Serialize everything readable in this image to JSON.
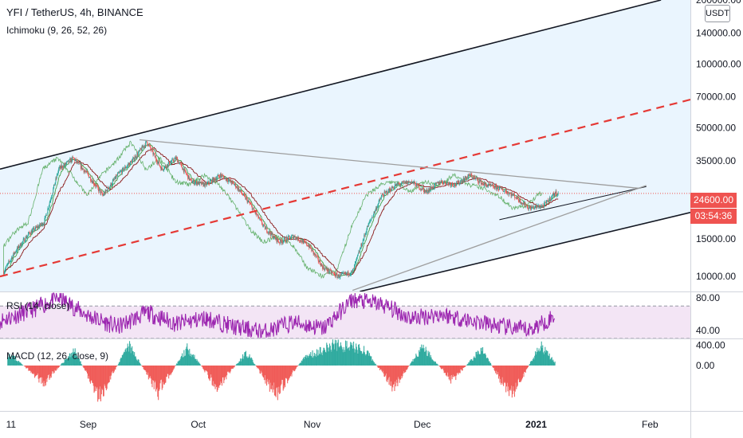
{
  "header": {
    "title": "YFI / TetherUS, 4h, BINANCE",
    "ichimoku_label": "Ichimoku (9, 26, 52, 26)",
    "rsi_label": "RSI (14, close)",
    "macd_label": "MACD (12, 26, close, 9)",
    "unit": "USDT"
  },
  "price_tags": {
    "last_price": "24600.00",
    "countdown": "03:54:36"
  },
  "colors": {
    "bull": "#26a69a",
    "bear": "#ef5350",
    "channel": "#131722",
    "midline": "#e53935",
    "triangle": "#9e9e9e",
    "rsi": "#9c27b0",
    "channel_fill": "#e3f2fd",
    "rsi_fill": "#f3e5f5",
    "tenkan": "#43a047",
    "kijun": "#8b1a1a"
  },
  "chart_data": [
    {
      "type": "line",
      "title": "YFI / TetherUS, 4h, BINANCE",
      "scale": "log",
      "ylim": [
        8500,
        200000
      ],
      "ytick_values": [
        10000,
        15000,
        24600,
        35000,
        50000,
        70000,
        100000,
        140000,
        200000
      ],
      "ytick_labels": [
        "10000.00",
        "15000.00",
        "24600.00",
        "35000.00",
        "50000.00",
        "70000.00",
        "100000.00",
        "140000.00",
        "200000.00"
      ],
      "xlim": [
        "2020-08-08",
        "2021-02-12"
      ],
      "x_tick_dates": [
        "2020-08-11",
        "2020-09-01",
        "2020-10-01",
        "2020-11-01",
        "2020-12-01",
        "2021-01-01",
        "2021-02-01"
      ],
      "x_tick_labels": [
        "11",
        "Sep",
        "Oct",
        "Nov",
        "Dec",
        "2021",
        "Feb"
      ],
      "series": [
        {
          "x": [
            "2020-08-08",
            "2020-08-12",
            "2020-08-16",
            "2020-08-20",
            "2020-08-24",
            "2020-08-28",
            "2020-09-01",
            "2020-09-05",
            "2020-09-09",
            "2020-09-13",
            "2020-09-17",
            "2020-09-21",
            "2020-09-25",
            "2020-09-29",
            "2020-10-03",
            "2020-10-07",
            "2020-10-11",
            "2020-10-15",
            "2020-10-19",
            "2020-10-23",
            "2020-10-27",
            "2020-10-31",
            "2020-11-04",
            "2020-11-08",
            "2020-11-12",
            "2020-11-16",
            "2020-11-20",
            "2020-11-24",
            "2020-11-28",
            "2020-12-02",
            "2020-12-06",
            "2020-12-10",
            "2020-12-14",
            "2020-12-18",
            "2020-12-22",
            "2020-12-26",
            "2020-12-30",
            "2021-01-03",
            "2021-01-06"
          ],
          "values": [
            9800,
            13000,
            16000,
            18000,
            32000,
            36000,
            30000,
            24000,
            30000,
            35000,
            43000,
            32000,
            36000,
            28000,
            27000,
            30000,
            27000,
            22000,
            17000,
            14500,
            15500,
            14000,
            11000,
            10000,
            10500,
            17000,
            24000,
            27000,
            28000,
            25000,
            28000,
            27000,
            30000,
            27000,
            26000,
            24000,
            21000,
            21500,
            24600
          ]
        }
      ],
      "annotations": {
        "channel_upper": [
          [
            "2020-08-08",
            32000
          ],
          [
            "2021-02-04",
            200000
          ]
        ],
        "channel_lower": [
          [
            "2020-11-14",
            8500
          ],
          [
            "2021-02-12",
            20000
          ]
        ],
        "channel_midline": [
          [
            "2020-08-08",
            10000
          ],
          [
            "2021-02-12",
            68000
          ]
        ],
        "triangle_upper": [
          [
            "2020-09-15",
            44000
          ],
          [
            "2021-01-29",
            26000
          ]
        ],
        "triangle_lower": [
          [
            "2020-12-22",
            18500
          ],
          [
            "2021-01-31",
            26500
          ]
        ],
        "support_ray": [
          [
            "2020-11-12",
            8600
          ],
          [
            "2021-01-31",
            26800
          ]
        ],
        "last_price_line": 24600
      }
    },
    {
      "type": "line",
      "title": "RSI (14, close)",
      "ylim": [
        30,
        87
      ],
      "ytick_values": [
        40,
        80
      ],
      "ytick_labels": [
        "40.00",
        "80.00"
      ],
      "band": [
        30,
        70
      ],
      "series": [
        {
          "x": [
            "2020-08-08",
            "2020-08-16",
            "2020-08-24",
            "2020-09-01",
            "2020-09-09",
            "2020-09-17",
            "2020-09-25",
            "2020-10-03",
            "2020-10-11",
            "2020-10-19",
            "2020-10-27",
            "2020-11-04",
            "2020-11-12",
            "2020-11-20",
            "2020-11-28",
            "2020-12-06",
            "2020-12-14",
            "2020-12-22",
            "2020-12-30",
            "2021-01-06"
          ],
          "values": [
            52,
            64,
            80,
            58,
            44,
            62,
            48,
            55,
            44,
            38,
            50,
            42,
            78,
            72,
            55,
            60,
            52,
            45,
            40,
            57
          ]
        }
      ]
    },
    {
      "type": "bar",
      "title": "MACD (12, 26, close, 9)",
      "ylim": [
        -900,
        520
      ],
      "ytick_values": [
        0,
        400
      ],
      "ytick_labels": [
        "0.00",
        "400.00"
      ],
      "series": [
        {
          "x": [
            "2020-08-10",
            "2020-08-20",
            "2020-08-28",
            "2020-09-04",
            "2020-09-12",
            "2020-09-20",
            "2020-09-28",
            "2020-10-06",
            "2020-10-14",
            "2020-10-22",
            "2020-10-30",
            "2020-11-07",
            "2020-11-15",
            "2020-11-23",
            "2020-12-01",
            "2020-12-09",
            "2020-12-17",
            "2020-12-25",
            "2021-01-02",
            "2021-01-06"
          ],
          "values": [
            300,
            -400,
            350,
            -700,
            450,
            -600,
            420,
            -500,
            300,
            -650,
            200,
            480,
            380,
            -500,
            420,
            -350,
            380,
            -700,
            450,
            80
          ]
        }
      ]
    }
  ]
}
